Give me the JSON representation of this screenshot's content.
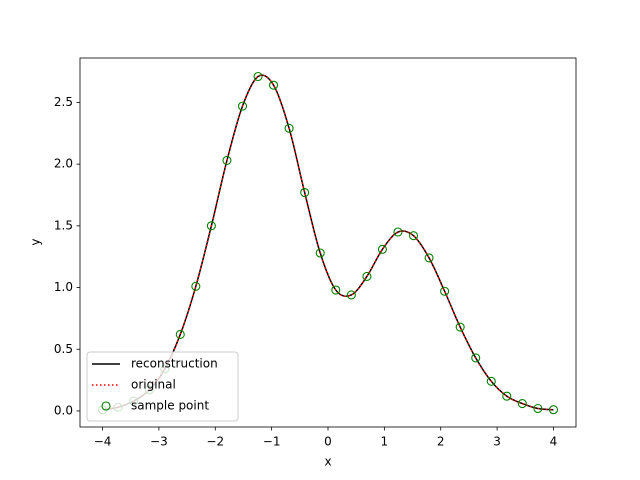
{
  "chart_data": {
    "type": "line",
    "xlabel": "x",
    "ylabel": "y",
    "x": [
      -4.0,
      -3.724,
      -3.448,
      -3.172,
      -2.897,
      -2.621,
      -2.345,
      -2.069,
      -1.793,
      -1.517,
      -1.241,
      -0.966,
      -0.69,
      -0.414,
      -0.138,
      0.138,
      0.414,
      0.69,
      0.966,
      1.241,
      1.517,
      1.793,
      2.069,
      2.345,
      2.621,
      2.897,
      3.172,
      3.448,
      3.724,
      4.0
    ],
    "series": [
      {
        "name": "reconstruction",
        "color": "#000000",
        "style": "solid",
        "values": [
          0.01,
          0.03,
          0.08,
          0.17,
          0.34,
          0.62,
          1.01,
          1.5,
          2.03,
          2.47,
          2.71,
          2.64,
          2.29,
          1.77,
          1.28,
          0.98,
          0.94,
          1.09,
          1.31,
          1.45,
          1.42,
          1.24,
          0.97,
          0.68,
          0.43,
          0.24,
          0.12,
          0.06,
          0.02,
          0.01
        ]
      },
      {
        "name": "original",
        "color": "#ff0000",
        "style": "dotted",
        "values": [
          0.01,
          0.03,
          0.08,
          0.17,
          0.34,
          0.62,
          1.01,
          1.5,
          2.03,
          2.47,
          2.71,
          2.64,
          2.29,
          1.77,
          1.28,
          0.98,
          0.94,
          1.09,
          1.31,
          1.45,
          1.42,
          1.24,
          0.97,
          0.68,
          0.43,
          0.24,
          0.12,
          0.06,
          0.02,
          0.01
        ]
      },
      {
        "name": "sample point",
        "color": "#008000",
        "style": "markers",
        "values": [
          0.01,
          0.03,
          0.08,
          0.17,
          0.34,
          0.62,
          1.01,
          1.5,
          2.03,
          2.47,
          2.71,
          2.64,
          2.29,
          1.77,
          1.28,
          0.98,
          0.94,
          1.09,
          1.31,
          1.45,
          1.42,
          1.24,
          0.97,
          0.68,
          0.43,
          0.24,
          0.12,
          0.06,
          0.02,
          0.01
        ]
      }
    ],
    "xlim": [
      -4.4,
      4.4
    ],
    "ylim": [
      -0.13,
      2.86
    ],
    "xticks": [
      {
        "value": -4,
        "label": "−4"
      },
      {
        "value": -3,
        "label": "−3"
      },
      {
        "value": -2,
        "label": "−2"
      },
      {
        "value": -1,
        "label": "−1"
      },
      0,
      1,
      2,
      3,
      4
    ],
    "yticks": [
      {
        "value": 0,
        "label": "0.0"
      },
      0.5,
      {
        "value": 1,
        "label": "1.0"
      },
      1.5,
      {
        "value": 2,
        "label": "2.0"
      },
      2.5
    ],
    "legend": "lower left"
  }
}
